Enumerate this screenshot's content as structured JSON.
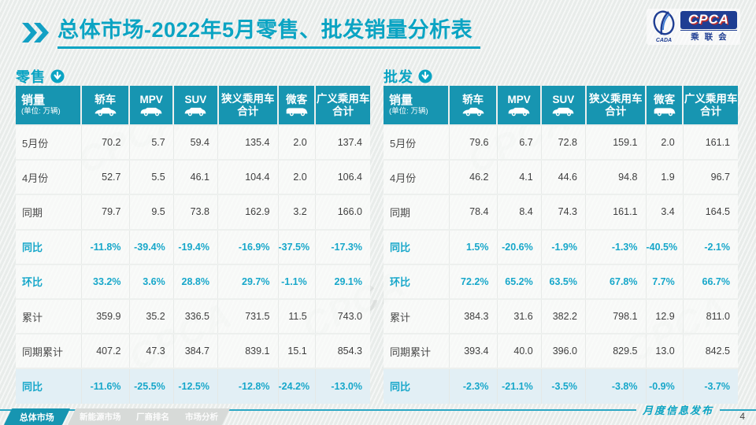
{
  "header": {
    "title": "总体市场-2022年5月零售、批发销量分析表",
    "logo": {
      "acronym": "CPCA",
      "org": "乘联会",
      "emblem_caption": "CADA"
    }
  },
  "sales_header": {
    "title": "销量",
    "unit": "(单位: 万辆)"
  },
  "columns": [
    {
      "lines": [
        "轿车"
      ],
      "icon": "sedan-icon"
    },
    {
      "lines": [
        "MPV"
      ],
      "icon": "mpv-icon"
    },
    {
      "lines": [
        "SUV"
      ],
      "icon": "suv-icon"
    },
    {
      "lines": [
        "狭义乘用车",
        "合计"
      ],
      "icon": ""
    },
    {
      "lines": [
        "微客"
      ],
      "icon": "van-icon"
    },
    {
      "lines": [
        "广义乘用车",
        "合计"
      ],
      "icon": ""
    }
  ],
  "tables": [
    {
      "name": "零售",
      "rows": [
        {
          "label": "5月份",
          "type": "normal",
          "values": [
            "70.2",
            "5.7",
            "59.4",
            "135.4",
            "2.0",
            "137.4"
          ]
        },
        {
          "label": "4月份",
          "type": "normal",
          "values": [
            "52.7",
            "5.5",
            "46.1",
            "104.4",
            "2.0",
            "106.4"
          ]
        },
        {
          "label": "同期",
          "type": "normal",
          "values": [
            "79.7",
            "9.5",
            "73.8",
            "162.9",
            "3.2",
            "166.0"
          ]
        },
        {
          "label": "同比",
          "type": "pct",
          "values": [
            "-11.8%",
            "-39.4%",
            "-19.4%",
            "-16.9%",
            "-37.5%",
            "-17.3%"
          ]
        },
        {
          "label": "环比",
          "type": "pct",
          "values": [
            "33.2%",
            "3.6%",
            "28.8%",
            "29.7%",
            "-1.1%",
            "29.1%"
          ]
        },
        {
          "label": "累计",
          "type": "normal",
          "values": [
            "359.9",
            "35.2",
            "336.5",
            "731.5",
            "11.5",
            "743.0"
          ]
        },
        {
          "label": "同期累计",
          "type": "normal",
          "values": [
            "407.2",
            "47.3",
            "384.7",
            "839.1",
            "15.1",
            "854.3"
          ]
        },
        {
          "label": "同比",
          "type": "pct hl",
          "values": [
            "-11.6%",
            "-25.5%",
            "-12.5%",
            "-12.8%",
            "-24.2%",
            "-13.0%"
          ]
        }
      ]
    },
    {
      "name": "批发",
      "rows": [
        {
          "label": "5月份",
          "type": "normal",
          "values": [
            "79.6",
            "6.7",
            "72.8",
            "159.1",
            "2.0",
            "161.1"
          ]
        },
        {
          "label": "4月份",
          "type": "normal",
          "values": [
            "46.2",
            "4.1",
            "44.6",
            "94.8",
            "1.9",
            "96.7"
          ]
        },
        {
          "label": "同期",
          "type": "normal",
          "values": [
            "78.4",
            "8.4",
            "74.3",
            "161.1",
            "3.4",
            "164.5"
          ]
        },
        {
          "label": "同比",
          "type": "pct",
          "values": [
            "1.5%",
            "-20.6%",
            "-1.9%",
            "-1.3%",
            "-40.5%",
            "-2.1%"
          ]
        },
        {
          "label": "环比",
          "type": "pct",
          "values": [
            "72.2%",
            "65.2%",
            "63.5%",
            "67.8%",
            "7.7%",
            "66.7%"
          ]
        },
        {
          "label": "累计",
          "type": "normal",
          "values": [
            "384.3",
            "31.6",
            "382.2",
            "798.1",
            "12.9",
            "811.0"
          ]
        },
        {
          "label": "同期累计",
          "type": "normal",
          "values": [
            "393.4",
            "40.0",
            "396.0",
            "829.5",
            "13.0",
            "842.5"
          ]
        },
        {
          "label": "同比",
          "type": "pct hl",
          "values": [
            "-2.3%",
            "-21.1%",
            "-3.5%",
            "-3.8%",
            "-0.9%",
            "-3.7%"
          ]
        }
      ]
    }
  ],
  "footer": {
    "tabs": [
      "总体市场",
      "新能源市场",
      "厂商排名",
      "市场分析"
    ],
    "note": "月度信息发布",
    "page": "4"
  },
  "watermark": "CPCA"
}
